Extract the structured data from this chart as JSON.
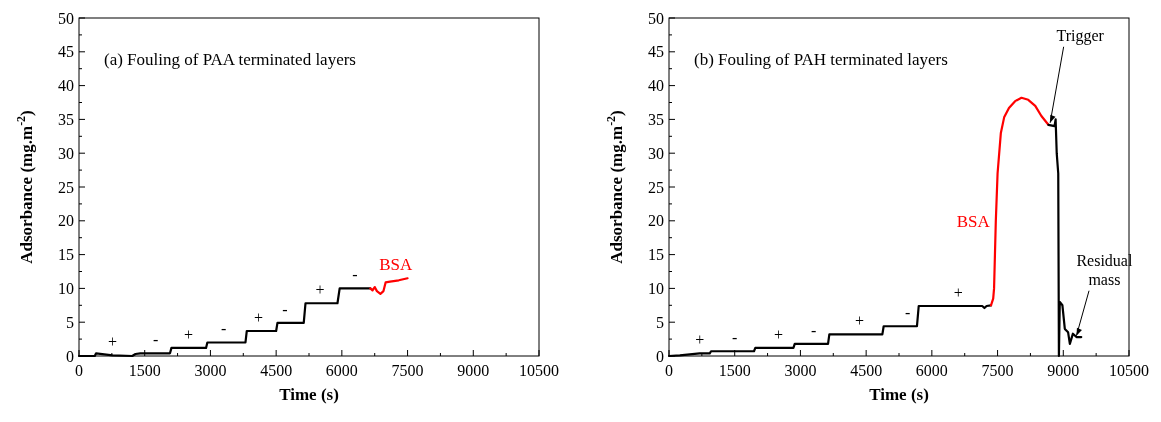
{
  "chart_data": [
    {
      "type": "line",
      "title": "(a)  Fouling of PAA terminated layers",
      "xlabel": "Time (s)",
      "ylabel": "Adsorbance (mg.m$^{-2}$)",
      "xlim": [
        0,
        10500
      ],
      "ylim": [
        0,
        50
      ],
      "xticks": [
        0,
        {
          "value": 750,
          "label": null
        },
        1500,
        {
          "value": 2250,
          "label": null
        },
        3000,
        {
          "value": 3750,
          "label": null
        },
        4500,
        {
          "value": 5250,
          "label": null
        },
        6000,
        {
          "value": 6750,
          "label": null
        },
        7500,
        {
          "value": 8250,
          "label": null
        },
        9000,
        {
          "value": 9750,
          "label": null
        },
        10500
      ],
      "yticks": [
        0,
        {
          "value": 2.5,
          "label": null
        },
        5,
        {
          "value": 7.5,
          "label": null
        },
        10,
        {
          "value": 12.5,
          "label": null
        },
        15,
        {
          "value": 17.5,
          "label": null
        },
        20,
        {
          "value": 22.5,
          "label": null
        },
        25,
        {
          "value": 27.5,
          "label": null
        },
        30,
        {
          "value": 32.5,
          "label": null
        },
        35,
        {
          "value": 37.5,
          "label": null
        },
        40,
        {
          "value": 42.5,
          "label": null
        },
        45,
        {
          "value": 47.5,
          "label": null
        },
        50
      ],
      "grid": false,
      "marker": "none",
      "line_style": "solid",
      "series": [
        {
          "color": "#000000",
          "x": [
            0,
            360,
            390,
            765,
            1215,
            1290,
            1400,
            2077,
            2110,
            2900,
            2930,
            3800,
            3830,
            4500,
            4530,
            5130,
            5170,
            5900,
            5950,
            6650
          ],
          "values": [
            0,
            0,
            0.4,
            0.1,
            0,
            0.3,
            0.4,
            0.4,
            1.2,
            1.2,
            2.0,
            2.0,
            3.7,
            3.7,
            4.9,
            4.9,
            7.8,
            7.8,
            10.0,
            10.0
          ]
        },
        {
          "color": "#ff0000",
          "x": [
            6650,
            6700,
            6750,
            6800,
            6880,
            6950,
            7000,
            7100,
            7300,
            7500
          ],
          "values": [
            10.0,
            9.7,
            10.2,
            9.6,
            9.2,
            9.6,
            10.9,
            11.0,
            11.2,
            11.5
          ]
        }
      ],
      "annotations": [
        {
          "text": "+",
          "x": 765,
          "y": 0.1
        },
        {
          "text": "-",
          "x": 1750,
          "y": 0.4
        },
        {
          "text": "+",
          "x": 2500,
          "y": 1.2
        },
        {
          "text": "-",
          "x": 3300,
          "y": 2.0
        },
        {
          "text": "+",
          "x": 4100,
          "y": 3.7
        },
        {
          "text": "-",
          "x": 4700,
          "y": 4.9
        },
        {
          "text": "+",
          "x": 5500,
          "y": 7.8
        },
        {
          "text": "-",
          "x": 6300,
          "y": 10.0
        },
        {
          "text": "BSA",
          "x": 7000,
          "y": 10.9
        }
      ]
    },
    {
      "type": "line",
      "title": "(b)  Fouling of PAH terminated layers",
      "xlabel": "Time (s)",
      "ylabel": "Adsorbance (mg.m$^{-2}$)",
      "xlim": [
        0,
        10500
      ],
      "ylim": [
        0,
        50
      ],
      "xticks": [
        0,
        {
          "value": 750,
          "label": null
        },
        1500,
        {
          "value": 2250,
          "label": null
        },
        3000,
        {
          "value": 3750,
          "label": null
        },
        4500,
        {
          "value": 5250,
          "label": null
        },
        6000,
        {
          "value": 6750,
          "label": null
        },
        7500,
        {
          "value": 8250,
          "label": null
        },
        9000,
        {
          "value": 9750,
          "label": null
        },
        10500
      ],
      "yticks": [
        0,
        {
          "value": 2.5,
          "label": null
        },
        5,
        {
          "value": 7.5,
          "label": null
        },
        10,
        {
          "value": 12.5,
          "label": null
        },
        15,
        {
          "value": 17.5,
          "label": null
        },
        20,
        {
          "value": 22.5,
          "label": null
        },
        25,
        {
          "value": 27.5,
          "label": null
        },
        30,
        {
          "value": 32.5,
          "label": null
        },
        35,
        {
          "value": 37.5,
          "label": null
        },
        40,
        {
          "value": 42.5,
          "label": null
        },
        45,
        {
          "value": 47.5,
          "label": null
        },
        50
      ],
      "grid": false,
      "marker": "none",
      "line_style": "solid",
      "series": [
        {
          "color": "#000000",
          "x": [
            0,
            248,
            700,
            930,
            960,
            1940,
            1970,
            2840,
            2870,
            3630,
            3660,
            4870,
            4900,
            5660,
            5700,
            7150,
            7200,
            7250,
            7350
          ],
          "values": [
            0,
            0.1,
            0.4,
            0.4,
            0.7,
            0.7,
            1.2,
            1.2,
            1.8,
            1.8,
            3.2,
            3.2,
            4.4,
            4.4,
            7.4,
            7.4,
            7.1,
            7.4,
            7.5
          ]
        },
        {
          "color": "#ff0000",
          "x": [
            7350,
            7400,
            7420,
            7460,
            7500,
            7575,
            7650,
            7760,
            7900,
            8045,
            8200,
            8360,
            8500,
            8660
          ],
          "values": [
            7.5,
            8.5,
            10,
            20,
            27,
            33,
            35.3,
            36.7,
            37.7,
            38.2,
            37.9,
            37,
            35.5,
            34.2
          ]
        },
        {
          "color": "#000000",
          "x": [
            8660,
            8800,
            8825,
            8850,
            8885,
            8900,
            8920,
            8980,
            9035,
            9110,
            9150,
            9220,
            9300,
            9410
          ],
          "values": [
            34.2,
            34.0,
            35,
            30,
            27,
            0,
            8,
            7.5,
            4,
            3.5,
            1.8,
            3.3,
            2.8,
            2.8
          ]
        }
      ],
      "annotations": [
        {
          "text": "+",
          "x": 700,
          "y": 0.4
        },
        {
          "text": "-",
          "x": 1500,
          "y": 0.7
        },
        {
          "text": "+",
          "x": 2500,
          "y": 1.2
        },
        {
          "text": "-",
          "x": 3300,
          "y": 1.8
        },
        {
          "text": "+",
          "x": 4350,
          "y": 3.2
        },
        {
          "text": "-",
          "x": 5450,
          "y": 4.4
        },
        {
          "text": "+",
          "x": 6600,
          "y": 7.4
        },
        {
          "text": "BSA",
          "x": 7460,
          "y": 20
        },
        {
          "text": "Trigger",
          "x": 8700,
          "y": 34.5
        },
        {
          "text": "Residual mass",
          "x": 9300,
          "y": 3.0
        }
      ]
    }
  ]
}
